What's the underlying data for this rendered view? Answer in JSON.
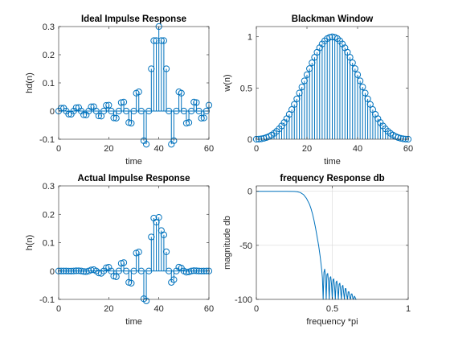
{
  "colors": {
    "series": "#0072BD",
    "axis": "#262626",
    "grid": "#d9d9d9",
    "background": "#ffffff"
  },
  "chart_data": [
    {
      "type": "stem",
      "title": "Ideal Impulse Response",
      "xlabel": "time",
      "ylabel": "hd(n)",
      "xlim": [
        0,
        60
      ],
      "ylim": [
        -0.1,
        0.3
      ],
      "xticks": [
        0,
        20,
        40,
        60
      ],
      "yticks": [
        -0.1,
        0,
        0.1,
        0.2,
        0.3
      ],
      "ytick_labels": [
        "-0.1",
        "0",
        "0.1",
        "0.2",
        "0.3"
      ],
      "grid": false,
      "x": [
        0,
        1,
        2,
        3,
        4,
        5,
        6,
        7,
        8,
        9,
        10,
        11,
        12,
        13,
        14,
        15,
        16,
        17,
        18,
        19,
        20,
        21,
        22,
        23,
        24,
        25,
        26,
        27,
        28,
        29,
        30,
        31,
        32,
        33,
        34,
        35,
        36,
        37,
        38,
        39,
        40,
        41,
        42,
        43,
        44,
        45,
        46,
        47,
        48,
        49,
        50,
        51,
        52,
        53,
        54,
        55,
        56,
        57,
        58,
        59,
        60
      ],
      "y": [
        0.0,
        0.0099,
        0.0103,
        0.0,
        -0.0109,
        -0.0113,
        0.0,
        0.012,
        0.0124,
        0.0,
        -0.0133,
        -0.0138,
        0.0,
        0.015,
        0.0156,
        0.0,
        -0.0172,
        -0.0179,
        0.0,
        0.0201,
        0.0209,
        0.0,
        -0.0242,
        -0.0252,
        0.0,
        0.0302,
        0.0318,
        0.0,
        -0.0408,
        -0.043,
        0.0,
        0.0635,
        0.0682,
        0.0,
        -0.1052,
        -0.1178,
        0.0,
        0.15,
        0.25,
        0.25,
        0.3,
        0.25,
        0.25,
        0.15,
        0.0,
        -0.1178,
        -0.1052,
        0.0,
        0.0682,
        0.0635,
        0.0,
        -0.043,
        -0.0408,
        0.0,
        0.0318,
        0.0302,
        0.0,
        -0.0252,
        -0.0242,
        0.0,
        0.0209
      ]
    },
    {
      "type": "stem",
      "title": "Blackman Window",
      "xlabel": "time",
      "ylabel": "w(n)",
      "xlim": [
        0,
        60
      ],
      "ylim": [
        0,
        1.1
      ],
      "xticks": [
        0,
        20,
        40,
        60
      ],
      "yticks": [
        0,
        0.5,
        1
      ],
      "ytick_labels": [
        "0",
        "0.5",
        "1"
      ],
      "grid": false,
      "window": "blackman",
      "n_points": 61
    },
    {
      "type": "stem",
      "title": "Actual Impulse Response",
      "xlabel": "time",
      "ylabel": "h(n)",
      "xlim": [
        0,
        60
      ],
      "ylim": [
        -0.1,
        0.3
      ],
      "xticks": [
        0,
        20,
        40,
        60
      ],
      "yticks": [
        -0.1,
        0,
        0.1,
        0.2,
        0.3
      ],
      "ytick_labels": [
        "-0.1",
        "0",
        "0.1",
        "0.2",
        "0.3"
      ],
      "grid": false,
      "derived_from": "ideal impulse response multiplied by the Blackman window"
    },
    {
      "type": "line",
      "title": "frequency Response db",
      "xlabel": "frequency *pi",
      "ylabel": "magnitude db",
      "xlim": [
        0,
        1
      ],
      "ylim": [
        -100,
        5
      ],
      "xticks": [
        0,
        0.5,
        1
      ],
      "xtick_labels": [
        "0",
        "0.5",
        "1"
      ],
      "yticks": [
        -100,
        -50,
        0
      ],
      "ytick_labels": [
        "-100",
        "-50",
        "0"
      ],
      "grid": true,
      "x": [
        0,
        0.05,
        0.1,
        0.15,
        0.2,
        0.25,
        0.27,
        0.29,
        0.31,
        0.33,
        0.35,
        0.36,
        0.37,
        0.38,
        0.39,
        0.4,
        0.41,
        0.415,
        0.42,
        0.425,
        0.43,
        0.435,
        0.44,
        0.445,
        0.45,
        0.455,
        0.46,
        0.465,
        0.47,
        0.475,
        0.48,
        0.485,
        0.49,
        0.495,
        0.5,
        0.505,
        0.51,
        0.515,
        0.52,
        0.525,
        0.53,
        0.535,
        0.54,
        0.545,
        0.55,
        0.555,
        0.56,
        0.565,
        0.57,
        0.575,
        0.58,
        0.585,
        0.59,
        0.595,
        0.6,
        0.605,
        0.61,
        0.615,
        0.62,
        0.625,
        0.63,
        0.635,
        0.64,
        0.645,
        0.65,
        0.655,
        0.66
      ],
      "y": [
        0,
        0,
        0,
        0,
        0,
        -0.1,
        -0.4,
        -1.2,
        -3,
        -6.5,
        -12,
        -16,
        -21,
        -27,
        -34,
        -42,
        -50,
        -55,
        -60,
        -66,
        -72,
        -80,
        -100,
        -75,
        -72,
        -78,
        -100,
        -77,
        -76,
        -83,
        -100,
        -80,
        -79,
        -86,
        -100,
        -82,
        -81,
        -88,
        -100,
        -84,
        -83,
        -90,
        -100,
        -86,
        -85,
        -92,
        -100,
        -88,
        -87,
        -94,
        -100,
        -90,
        -90,
        -96,
        -100,
        -93,
        -93,
        -98,
        -100,
        -95,
        -95,
        -99,
        -100,
        -97,
        -98,
        -100,
        -100
      ]
    }
  ]
}
